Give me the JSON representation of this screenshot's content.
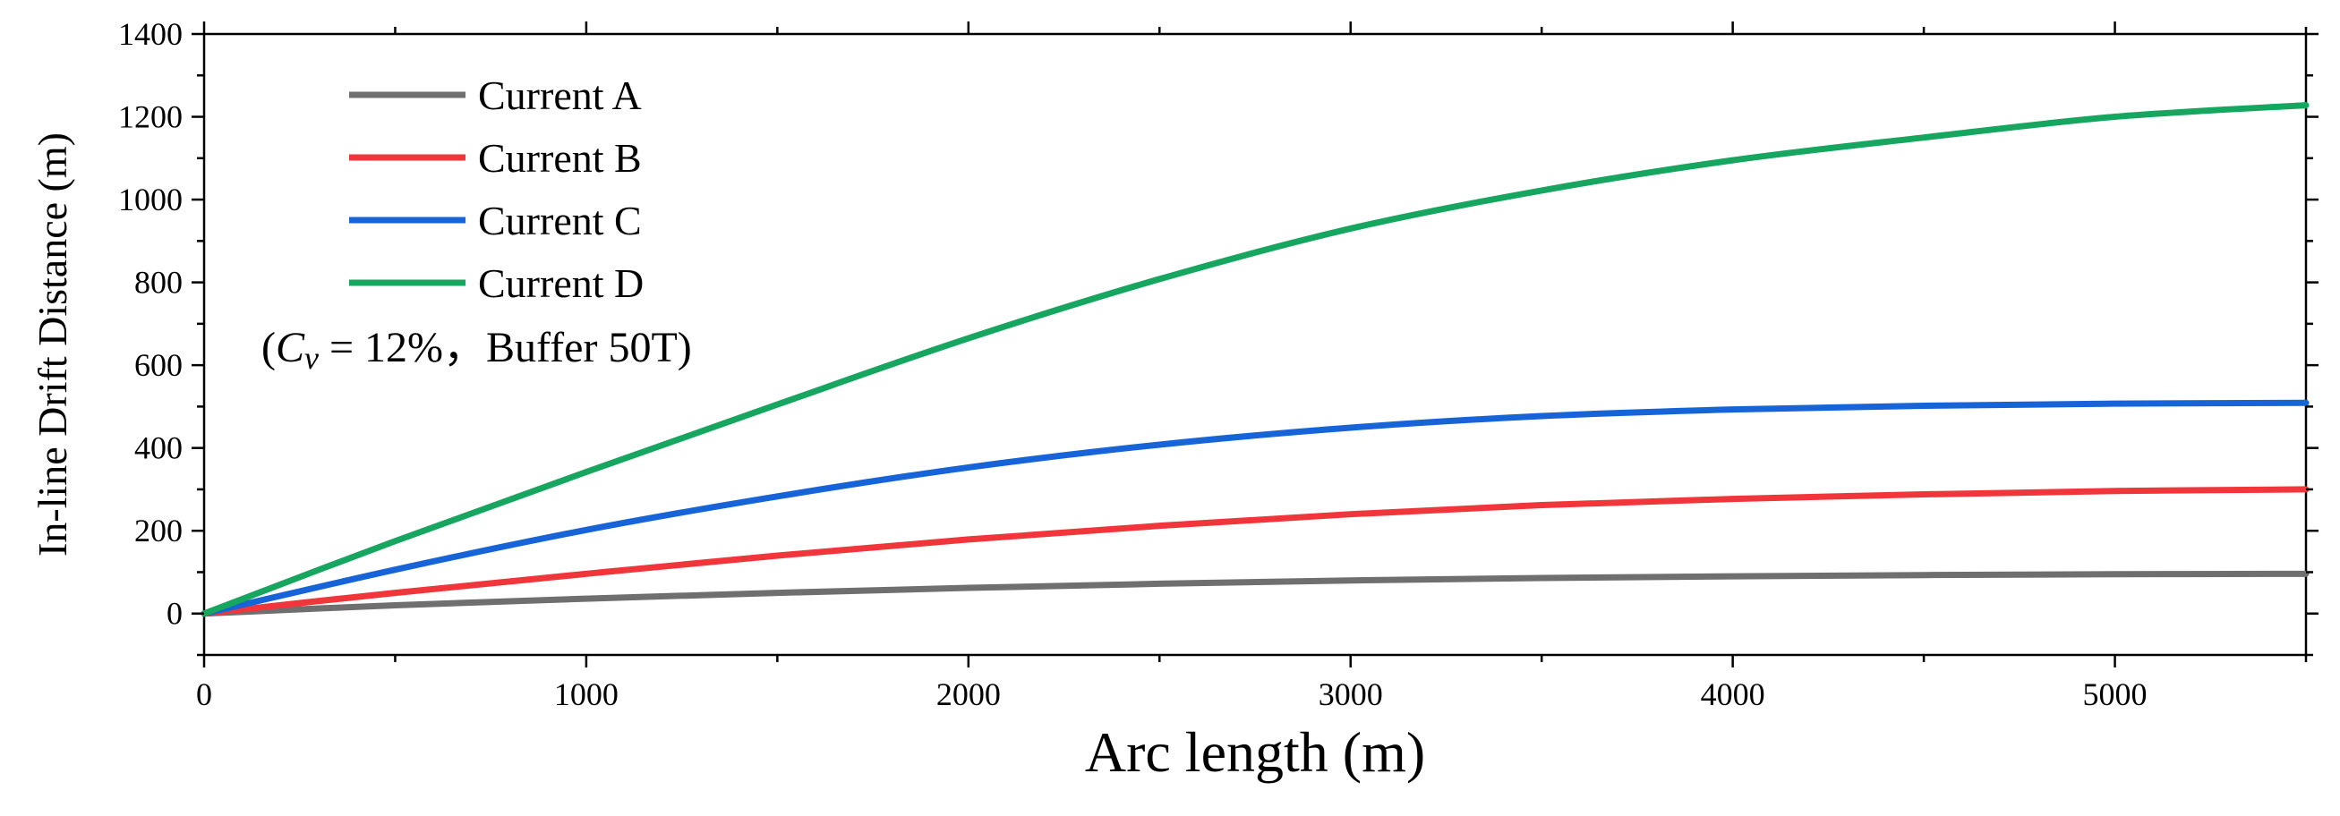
{
  "chart_data": {
    "type": "line",
    "title": "",
    "xlabel": "Arc length (m)",
    "ylabel": "In-line Drift Distance (m)",
    "xlim": [
      0,
      5500
    ],
    "ylim": [
      -100,
      1400
    ],
    "xticks": [
      0,
      1000,
      2000,
      3000,
      4000,
      5000
    ],
    "yticks": [
      0,
      200,
      400,
      600,
      800,
      1000,
      1200,
      1400
    ],
    "xtick_labels": [
      "0",
      "1000",
      "2000",
      "3000",
      "4000",
      "5000"
    ],
    "ytick_labels": [
      "0",
      "200",
      "400",
      "600",
      "800",
      "1000",
      "1200",
      "1400"
    ],
    "grid": false,
    "legend_position": "top-left",
    "annotation": {
      "open": "(",
      "symbol": "C",
      "subscript": "v",
      "text": " = 12%，Buffer 50T)"
    },
    "series": [
      {
        "name": "Current A",
        "color": "#6f6f6f",
        "x": [
          0,
          500,
          1000,
          1500,
          2000,
          2500,
          3000,
          3500,
          4000,
          4500,
          5000,
          5500
        ],
        "y": [
          0,
          20,
          36,
          50,
          62,
          72,
          80,
          86,
          90,
          93,
          95,
          96
        ]
      },
      {
        "name": "Current B",
        "color": "#f0353b",
        "x": [
          0,
          500,
          1000,
          1500,
          2000,
          2500,
          3000,
          3500,
          4000,
          4500,
          5000,
          5500
        ],
        "y": [
          0,
          50,
          96,
          140,
          179,
          212,
          240,
          262,
          277,
          288,
          296,
          300
        ]
      },
      {
        "name": "Current C",
        "color": "#1764d9",
        "x": [
          0,
          500,
          1000,
          1500,
          2000,
          2500,
          3000,
          3500,
          4000,
          4500,
          5000,
          5500
        ],
        "y": [
          0,
          106,
          202,
          283,
          353,
          408,
          449,
          477,
          493,
          502,
          507,
          509
        ]
      },
      {
        "name": "Current D",
        "color": "#17a660",
        "x": [
          0,
          500,
          1000,
          1500,
          2000,
          2500,
          3000,
          3500,
          4000,
          4500,
          5000,
          5500
        ],
        "y": [
          0,
          175,
          342,
          505,
          665,
          808,
          930,
          1022,
          1095,
          1150,
          1200,
          1228
        ]
      }
    ]
  }
}
